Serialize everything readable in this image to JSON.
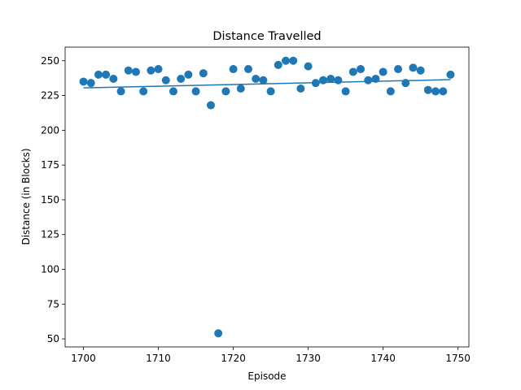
{
  "chart_data": {
    "type": "scatter",
    "title": "Distance Travelled",
    "xlabel": "Episode",
    "ylabel": "Distance (in Blocks)",
    "xlim": [
      1697.55,
      1751.45
    ],
    "ylim": [
      44.2,
      259.8
    ],
    "xticks": [
      1700,
      1710,
      1720,
      1730,
      1740,
      1750
    ],
    "yticks": [
      50,
      75,
      100,
      125,
      150,
      175,
      200,
      225,
      250
    ],
    "grid": false,
    "legend": "none",
    "point_color": "#1f77b4",
    "trend_color": "#1f77b4",
    "series": [
      {
        "x": [
          1700,
          1701,
          1702,
          1703,
          1704,
          1705,
          1706,
          1707,
          1708,
          1709,
          1710,
          1711,
          1712,
          1713,
          1714,
          1715,
          1716,
          1717,
          1718,
          1719,
          1720,
          1721,
          1722,
          1723,
          1724,
          1725,
          1726,
          1727,
          1728,
          1729,
          1730,
          1731,
          1732,
          1733,
          1734,
          1735,
          1736,
          1737,
          1738,
          1739,
          1740,
          1741,
          1742,
          1743,
          1744,
          1745,
          1746,
          1747,
          1748,
          1749
        ],
        "y": [
          235,
          234,
          240,
          240,
          237,
          228,
          243,
          242,
          228,
          243,
          244,
          236,
          228,
          237,
          240,
          228,
          241,
          218,
          54,
          228,
          244,
          230,
          244,
          237,
          236,
          228,
          247,
          250,
          250,
          230,
          246,
          234,
          236,
          237,
          236,
          228,
          242,
          244,
          236,
          237,
          242,
          228,
          244,
          234,
          245,
          243,
          229,
          228,
          228,
          240
        ]
      }
    ],
    "trendline": {
      "x": [
        1700,
        1749
      ],
      "y": [
        230.5,
        236.4
      ]
    }
  }
}
